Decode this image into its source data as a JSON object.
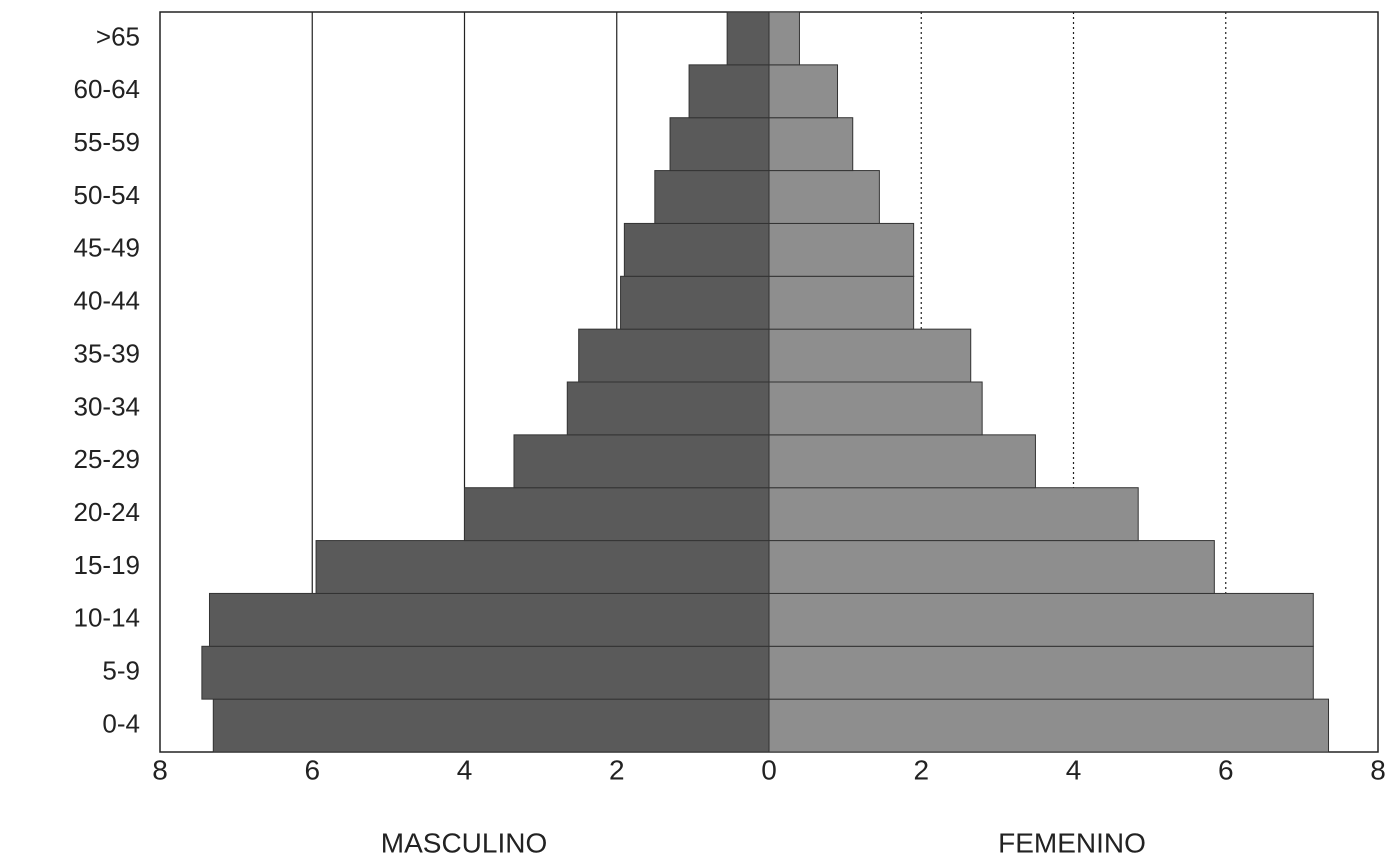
{
  "chart_data": {
    "type": "pyramid",
    "categories": [
      "0-4",
      "5-9",
      "10-14",
      "15-19",
      "20-24",
      "25-29",
      "30-34",
      "35-39",
      "40-44",
      "45-49",
      "50-54",
      "55-59",
      "60-64",
      ">65"
    ],
    "series": [
      {
        "name": "MASCULINO",
        "color": "#5a5a5a",
        "values": [
          -7.3,
          -7.45,
          -7.35,
          -5.95,
          -4.0,
          -3.35,
          -2.65,
          -2.5,
          -1.95,
          -1.9,
          -1.5,
          -1.3,
          -1.05,
          -0.55
        ]
      },
      {
        "name": "FEMENINO",
        "color": "#8e8e8e",
        "values": [
          7.35,
          7.15,
          7.15,
          5.85,
          4.85,
          3.5,
          2.8,
          2.65,
          1.9,
          1.9,
          1.45,
          1.1,
          0.9,
          0.4
        ]
      }
    ],
    "xlim": [
      -8,
      8
    ],
    "xticks": [
      {
        "value": -8,
        "label": "8"
      },
      {
        "value": -6,
        "label": "6"
      },
      {
        "value": -4,
        "label": "4"
      },
      {
        "value": -2,
        "label": "2"
      },
      0,
      2,
      4,
      6,
      8
    ],
    "grid": true
  }
}
